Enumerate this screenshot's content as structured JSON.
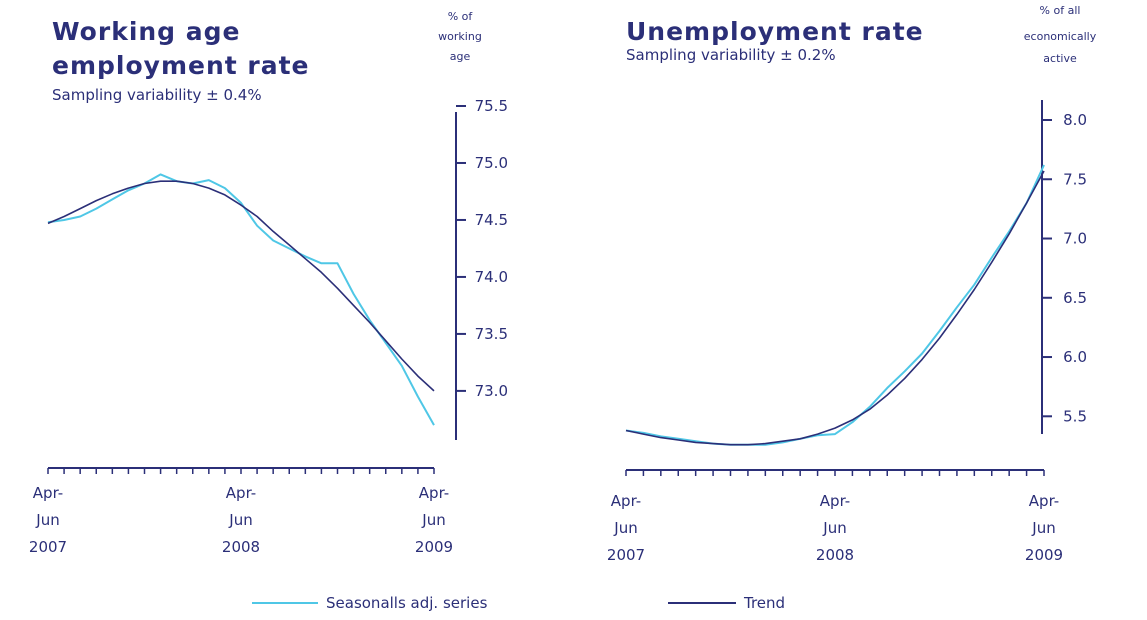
{
  "colors": {
    "seasonal": "#4fc7e6",
    "trend": "#2b2f78",
    "axis": "#2b2f78"
  },
  "legend": {
    "seasonal_label": "Seasonalls adj. series",
    "trend_label": "Trend"
  },
  "chart_data": [
    {
      "type": "line",
      "title": "Working age employment rate",
      "title_lines": [
        "Working age",
        "employment rate"
      ],
      "subtitle": "Sampling variability ± 0.4%",
      "ylabel_lines": [
        "% of",
        "working",
        "age"
      ],
      "ylim": [
        72.85,
        75.5
      ],
      "yticks": [
        75.5,
        75.0,
        74.5,
        74.0,
        73.5,
        73.0
      ],
      "ytick_labels": [
        "75.5",
        "75.0",
        "74.5",
        "74.0",
        "73.5",
        "73.0"
      ],
      "x_count": 25,
      "x_labels": [
        {
          "index": 0,
          "lines": [
            "Apr-",
            "Jun",
            "2007"
          ]
        },
        {
          "index": 12,
          "lines": [
            "Apr-",
            "Jun",
            "2008"
          ]
        },
        {
          "index": 24,
          "lines": [
            "Apr-",
            "Jun",
            "2009"
          ]
        }
      ],
      "series": [
        {
          "name": "Seasonalls adj. series",
          "values": [
            74.48,
            74.5,
            74.53,
            74.6,
            74.68,
            74.76,
            74.82,
            74.9,
            74.84,
            74.82,
            74.85,
            74.78,
            74.65,
            74.45,
            74.32,
            74.25,
            74.18,
            74.12,
            74.12,
            73.85,
            73.62,
            73.42,
            73.22,
            72.95,
            72.7
          ]
        },
        {
          "name": "Trend",
          "values": [
            74.47,
            74.53,
            74.6,
            74.67,
            74.73,
            74.78,
            74.82,
            74.84,
            74.84,
            74.82,
            74.78,
            74.72,
            74.63,
            74.53,
            74.4,
            74.28,
            74.16,
            74.04,
            73.9,
            73.75,
            73.6,
            73.44,
            73.28,
            73.13,
            73.0
          ]
        }
      ]
    },
    {
      "type": "line",
      "title": "Unemployment rate",
      "subtitle": "Sampling variability ± 0.2%",
      "ylabel_lines": [
        "% of all",
        "economically",
        "active"
      ],
      "ylim": [
        5.3,
        8.0
      ],
      "yticks": [
        8.0,
        7.5,
        7.0,
        6.5,
        6.0,
        5.5
      ],
      "ytick_labels": [
        "8.0",
        "7.5",
        "7.0",
        "6.5",
        "6.0",
        "5.5"
      ],
      "x_count": 25,
      "x_labels": [
        {
          "index": 0,
          "lines": [
            "Apr-",
            "Jun",
            "2007"
          ]
        },
        {
          "index": 12,
          "lines": [
            "Apr-",
            "Jun",
            "2008"
          ]
        },
        {
          "index": 24,
          "lines": [
            "Apr-",
            "Jun",
            "2009"
          ]
        }
      ],
      "series": [
        {
          "name": "Seasonalls adj. series",
          "values": [
            5.38,
            5.36,
            5.33,
            5.31,
            5.29,
            5.27,
            5.26,
            5.26,
            5.26,
            5.28,
            5.31,
            5.34,
            5.35,
            5.45,
            5.58,
            5.74,
            5.88,
            6.03,
            6.22,
            6.42,
            6.61,
            6.84,
            7.06,
            7.3,
            7.62
          ]
        },
        {
          "name": "Trend",
          "values": [
            5.38,
            5.35,
            5.32,
            5.3,
            5.28,
            5.27,
            5.26,
            5.26,
            5.27,
            5.29,
            5.31,
            5.35,
            5.4,
            5.47,
            5.56,
            5.68,
            5.82,
            5.98,
            6.16,
            6.36,
            6.57,
            6.8,
            7.04,
            7.3,
            7.57
          ]
        }
      ]
    }
  ]
}
